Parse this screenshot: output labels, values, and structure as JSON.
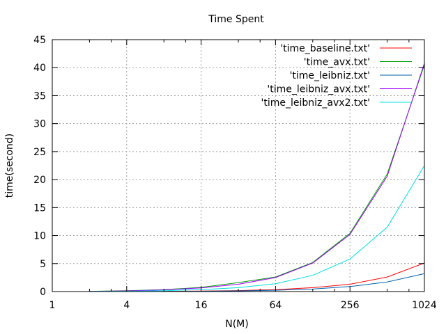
{
  "chart_data": {
    "type": "line",
    "title": "Time Spent",
    "xlabel": "N(M)",
    "ylabel": "time(second)",
    "xscale": "log2",
    "xlim": [
      1,
      1024
    ],
    "ylim": [
      0,
      45
    ],
    "xticks": [
      1,
      4,
      16,
      64,
      256,
      1024
    ],
    "yticks": [
      0,
      5,
      10,
      15,
      20,
      25,
      30,
      35,
      40,
      45
    ],
    "grid": true,
    "legend_position": "top-right",
    "x": [
      2,
      4,
      8,
      16,
      32,
      64,
      128,
      256,
      512,
      1024
    ],
    "series": [
      {
        "name": "'time_baseline.txt'",
        "color": "#ff0000",
        "values": [
          0.01,
          0.02,
          0.05,
          0.1,
          0.18,
          0.35,
          0.7,
          1.3,
          2.6,
          5.1
        ]
      },
      {
        "name": "'time_avx.txt'",
        "color": "#00a000",
        "values": [
          0.05,
          0.15,
          0.35,
          0.75,
          1.6,
          2.6,
          5.2,
          10.4,
          21,
          40.5
        ]
      },
      {
        "name": "'time_leibniz.txt'",
        "color": "#0060ad",
        "values": [
          0.005,
          0.01,
          0.03,
          0.06,
          0.12,
          0.24,
          0.45,
          0.9,
          1.7,
          3.2
        ]
      },
      {
        "name": "'time_leibniz_avx.txt'",
        "color": "#a000ff",
        "values": [
          0.04,
          0.12,
          0.3,
          0.65,
          1.3,
          2.5,
          5.1,
          10.2,
          20.6,
          40.8
        ]
      },
      {
        "name": "'time_leibniz_avx2.txt'",
        "color": "#00e0e0",
        "values": [
          0.02,
          0.06,
          0.16,
          0.35,
          0.7,
          1.4,
          2.9,
          5.8,
          11.5,
          22.5
        ]
      }
    ]
  }
}
